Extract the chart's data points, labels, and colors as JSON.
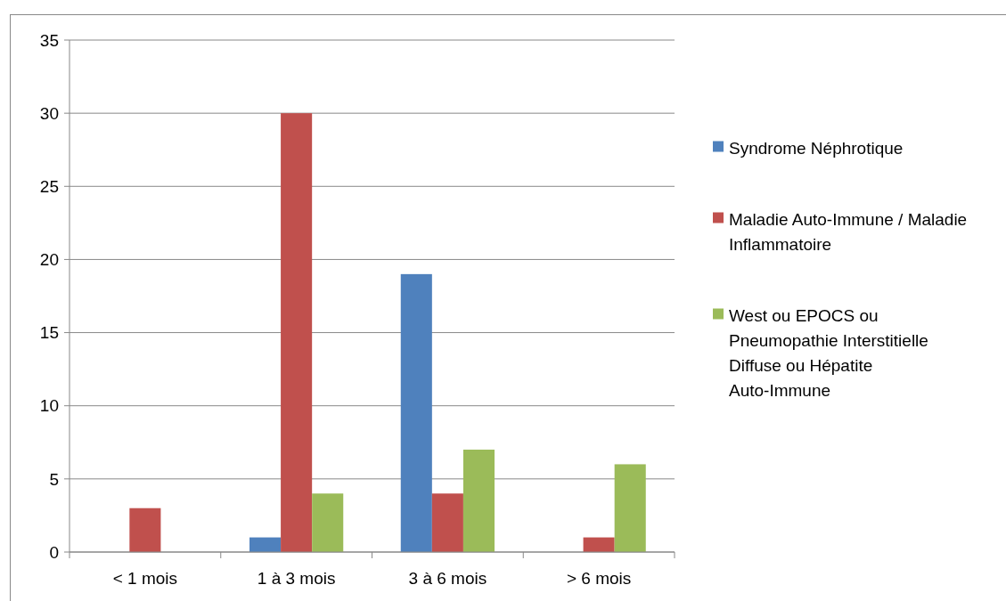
{
  "chart_data": {
    "type": "bar",
    "categories": [
      "< 1 mois",
      "1 à 3 mois",
      "3 à 6 mois",
      "> 6 mois"
    ],
    "series": [
      {
        "name": "Syndrome Néphrotique",
        "color": "#4f81bd",
        "values": [
          0,
          1,
          19,
          0
        ]
      },
      {
        "name": "Maladie Auto-Immune / Maladie Inflammatoire",
        "color": "#c0504d",
        "values": [
          3,
          30,
          4,
          1
        ]
      },
      {
        "name": "West ou EPOCS ou Pneumopathie Interstitielle Diffuse ou Hépatite Auto-Immune",
        "color": "#9bbb59",
        "values": [
          0,
          4,
          7,
          6
        ]
      }
    ],
    "ylim": [
      0,
      35
    ],
    "yticks": [
      0,
      5,
      10,
      15,
      20,
      25,
      30,
      35
    ],
    "grid": "y",
    "legend": "right"
  }
}
